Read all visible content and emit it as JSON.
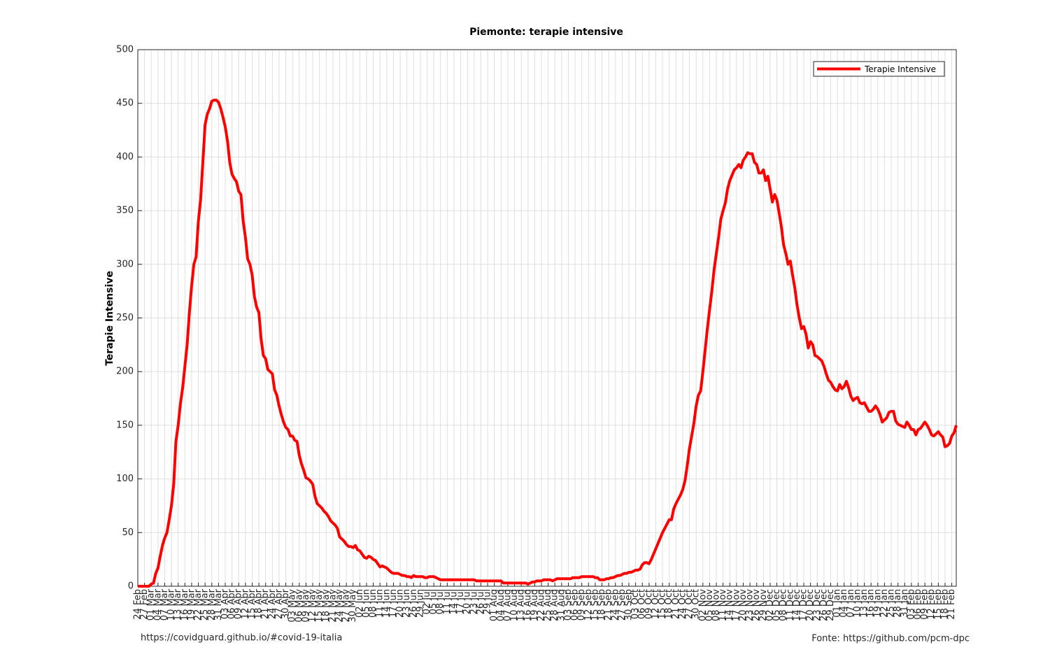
{
  "chart_data": {
    "type": "line",
    "title": "Piemonte: terapie intensive",
    "y_label": "Terapie Intensive",
    "categories": [
      "24 Feb",
      null,
      null,
      "27 Feb",
      null,
      null,
      "01 Mar",
      null,
      null,
      "04 Mar",
      null,
      null,
      "07 Mar",
      null,
      null,
      "10 Mar",
      null,
      null,
      "13 Mar",
      null,
      null,
      "16 Mar",
      null,
      null,
      "19 Mar",
      null,
      null,
      "22 Mar",
      null,
      null,
      "25 Mar",
      null,
      null,
      "28 Mar",
      null,
      null,
      "31 Mar",
      null,
      null,
      "03 Apr",
      null,
      null,
      "06 Apr",
      null,
      null,
      "09 Apr",
      null,
      null,
      "12 Apr",
      null,
      null,
      "15 Apr",
      null,
      null,
      "18 Apr",
      null,
      null,
      "21 Apr",
      null,
      null,
      "24 Apr",
      null,
      null,
      "27 Apr",
      null,
      null,
      "30 Apr",
      null,
      null,
      "03 May",
      null,
      null,
      "06 May",
      null,
      null,
      "09 May",
      null,
      null,
      "12 May",
      null,
      null,
      "15 May",
      null,
      null,
      "18 May",
      null,
      null,
      "21 May",
      null,
      null,
      "24 May",
      null,
      null,
      "27 May",
      null,
      null,
      "30 May",
      null,
      null,
      "02 Jun",
      null,
      null,
      "05 Jun",
      null,
      null,
      "08 Jun",
      null,
      null,
      "11 Jun",
      null,
      null,
      "14 Jun",
      null,
      null,
      "17 Jun",
      null,
      null,
      "20 Jun",
      null,
      null,
      "23 Jun",
      null,
      null,
      "26 Jun",
      null,
      null,
      "29 Jun",
      null,
      null,
      "02 Jul",
      null,
      null,
      "05 Jul",
      null,
      null,
      "08 Jul",
      null,
      null,
      "11 Jul",
      null,
      null,
      "14 Jul",
      null,
      null,
      "17 Jul",
      null,
      null,
      "20 Jul",
      null,
      null,
      "23 Jul",
      null,
      null,
      "26 Jul",
      null,
      null,
      "29 Jul",
      null,
      null,
      "01 Aug",
      null,
      null,
      "04 Aug",
      null,
      null,
      "07 Aug",
      null,
      null,
      "10 Aug",
      null,
      null,
      "13 Aug",
      null,
      null,
      "16 Aug",
      null,
      null,
      "19 Aug",
      null,
      null,
      "22 Aug",
      null,
      null,
      "25 Aug",
      null,
      null,
      "28 Aug",
      null,
      null,
      "31 Aug",
      null,
      null,
      "03 Sep",
      null,
      null,
      "06 Sep",
      null,
      null,
      "09 Sep",
      null,
      null,
      "12 Sep",
      null,
      null,
      "15 Sep",
      null,
      null,
      "18 Sep",
      null,
      null,
      "21 Sep",
      null,
      null,
      "24 Sep",
      null,
      null,
      "27 Sep",
      null,
      null,
      "30 Sep",
      null,
      null,
      "03 Oct",
      null,
      null,
      "06 Oct",
      null,
      null,
      "09 Oct",
      null,
      null,
      "12 Oct",
      null,
      null,
      "15 Oct",
      null,
      null,
      "18 Oct",
      null,
      null,
      "21 Oct",
      null,
      null,
      "24 Oct",
      null,
      null,
      "27 Oct",
      null,
      null,
      "30 Oct",
      null,
      null,
      "02 Nov",
      null,
      null,
      "05 Nov",
      null,
      null,
      "08 Nov",
      null,
      null,
      "11 Nov",
      null,
      null,
      "14 Nov",
      null,
      null,
      "17 Nov",
      null,
      null,
      "20 Nov",
      null,
      null,
      "23 Nov",
      null,
      null,
      "26 Nov",
      null,
      null,
      "29 Nov",
      null,
      null,
      "02 Dec",
      null,
      null,
      "05 Dec",
      null,
      null,
      "08 Dec",
      null,
      null,
      "11 Dec",
      null,
      null,
      "14 Dec",
      null,
      null,
      "17 Dec",
      null,
      null,
      "20 Dec",
      null,
      null,
      "23 Dec",
      null,
      null,
      "26 Dec",
      null,
      null,
      "29 Dec",
      null,
      null,
      "01 Jan",
      null,
      null,
      "04 Jan",
      null,
      null,
      "07 Jan",
      null,
      null,
      "10 Jan",
      null,
      null,
      "13 Jan",
      null,
      null,
      "16 Jan",
      null,
      null,
      "19 Jan",
      null,
      null,
      "22 Jan",
      null,
      null,
      "25 Jan",
      null,
      null,
      "28 Jan",
      null,
      null,
      "31 Jan",
      null,
      null,
      "03 Feb",
      null,
      null,
      "06 Feb",
      null,
      null,
      "09 Feb",
      null,
      null,
      "12 Feb",
      null,
      null,
      "15 Feb",
      null,
      null,
      "18 Feb",
      null,
      null,
      "21 Feb",
      null,
      null
    ],
    "series": [
      {
        "name": "Terapie Intensive",
        "color": "#ff0000",
        "values": [
          0,
          0,
          0,
          0,
          0,
          0,
          2,
          3,
          12,
          17,
          28,
          38,
          45,
          50,
          62,
          75,
          95,
          135,
          150,
          170,
          185,
          205,
          225,
          255,
          280,
          300,
          307,
          340,
          360,
          395,
          430,
          440,
          445,
          452,
          453,
          453,
          451,
          445,
          437,
          428,
          415,
          395,
          384,
          380,
          377,
          368,
          365,
          340,
          325,
          305,
          300,
          290,
          270,
          260,
          255,
          230,
          215,
          212,
          202,
          200,
          198,
          183,
          178,
          168,
          160,
          153,
          148,
          146,
          140,
          140,
          136,
          135,
          122,
          114,
          108,
          101,
          100,
          98,
          95,
          84,
          77,
          75,
          73,
          70,
          68,
          65,
          61,
          59,
          57,
          54,
          46,
          44,
          42,
          39,
          37,
          37,
          36,
          38,
          34,
          33,
          30,
          27,
          26,
          28,
          27,
          25,
          24,
          21,
          18,
          19,
          18,
          17,
          15,
          13,
          12,
          12,
          12,
          11,
          10,
          10,
          9,
          9,
          8,
          10,
          9,
          9,
          9,
          9,
          8,
          8,
          9,
          9,
          9,
          8,
          7,
          6,
          6,
          6,
          6,
          6,
          6,
          6,
          6,
          6,
          6,
          6,
          6,
          6,
          6,
          6,
          6,
          5,
          5,
          5,
          5,
          5,
          5,
          5,
          5,
          5,
          5,
          5,
          5,
          3,
          3,
          3,
          3,
          3,
          3,
          3,
          3,
          3,
          3,
          3,
          2,
          3,
          4,
          4,
          5,
          5,
          5,
          6,
          6,
          6,
          6,
          5,
          6,
          7,
          7,
          7,
          7,
          7,
          7,
          7,
          8,
          8,
          8,
          8,
          9,
          9,
          9,
          9,
          9,
          9,
          8,
          8,
          6,
          6,
          6,
          7,
          7,
          8,
          8,
          9,
          10,
          10,
          11,
          12,
          12,
          13,
          13,
          14,
          15,
          15,
          16,
          20,
          22,
          22,
          21,
          25,
          30,
          35,
          40,
          45,
          50,
          54,
          58,
          62,
          62,
          72,
          77,
          81,
          85,
          90,
          98,
          112,
          128,
          140,
          152,
          168,
          178,
          182,
          200,
          220,
          240,
          258,
          275,
          295,
          310,
          325,
          342,
          350,
          357,
          370,
          378,
          383,
          388,
          390,
          393,
          390,
          397,
          400,
          404,
          403,
          403,
          395,
          393,
          385,
          385,
          388,
          378,
          382,
          370,
          358,
          365,
          360,
          348,
          335,
          318,
          310,
          300,
          303,
          290,
          278,
          262,
          250,
          240,
          242,
          235,
          222,
          228,
          225,
          215,
          214,
          212,
          210,
          205,
          198,
          192,
          190,
          186,
          183,
          182,
          188,
          184,
          186,
          191,
          185,
          177,
          173,
          175,
          176,
          171,
          170,
          171,
          167,
          163,
          163,
          165,
          168,
          165,
          160,
          153,
          155,
          157,
          162,
          163,
          163,
          154,
          151,
          150,
          149,
          148,
          153,
          150,
          146,
          146,
          141,
          146,
          147,
          150,
          153,
          150,
          146,
          141,
          140,
          142,
          144,
          141,
          139,
          130,
          131,
          133,
          140,
          143,
          150
        ]
      }
    ],
    "ylim": [
      0,
      500
    ],
    "yticks": [
      0,
      50,
      100,
      150,
      200,
      250,
      300,
      350,
      400,
      450,
      500
    ],
    "grid": true,
    "legend": "northeast",
    "annotations": [
      "https://covidguard.github.io/#covid-19-italia",
      "Fonte: https://github.com/pcm-dpc"
    ]
  }
}
